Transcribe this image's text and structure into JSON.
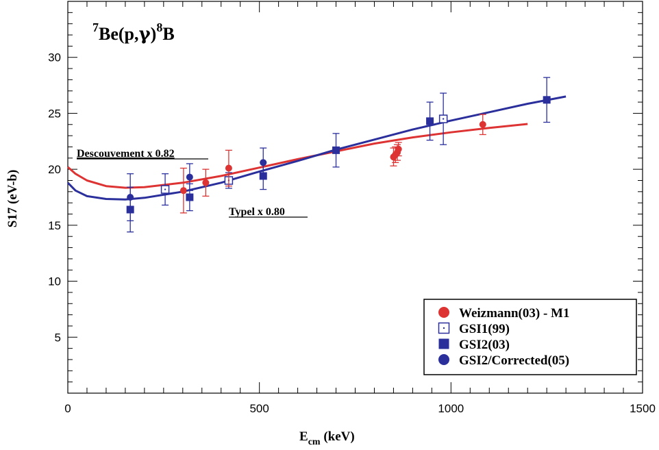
{
  "chart_data": {
    "type": "scatter",
    "title_parts": {
      "sup1": "7",
      "main1": "Be(p,",
      "gamma": "γ",
      "main2": ")",
      "sup2": "8",
      "main3": "B"
    },
    "xlabel": {
      "main": "E",
      "sub": "cm",
      "unit": " (keV)"
    },
    "ylabel": "S17 (eV-b)",
    "xlim": [
      0,
      1500
    ],
    "ylim": [
      0,
      35
    ],
    "xticks": [
      0,
      500,
      1000,
      1500
    ],
    "yticks": [
      5,
      10,
      15,
      20,
      25,
      30
    ],
    "colors": {
      "red": "#dd3333",
      "blue": "#2a2f9c"
    },
    "annotations": {
      "descouvemont": "Descouvement x 0.82",
      "typel": "Typel x 0.80"
    },
    "curves": [
      {
        "name": "Descouvement x 0.82",
        "color": "#dd3333",
        "x": [
          0,
          20,
          50,
          100,
          150,
          200,
          300,
          400,
          500,
          600,
          700,
          800,
          900,
          1000,
          1100,
          1200
        ],
        "y": [
          20.2,
          19.6,
          19.0,
          18.5,
          18.35,
          18.4,
          18.8,
          19.4,
          20.15,
          20.9,
          21.6,
          22.3,
          22.85,
          23.3,
          23.7,
          24.05
        ]
      },
      {
        "name": "Typel x 0.80",
        "color": "#2a2f9c",
        "x": [
          0,
          20,
          50,
          100,
          150,
          200,
          300,
          400,
          500,
          600,
          700,
          800,
          900,
          1000,
          1100,
          1200,
          1300
        ],
        "y": [
          18.8,
          18.1,
          17.6,
          17.35,
          17.3,
          17.45,
          18.0,
          18.8,
          19.8,
          20.75,
          21.75,
          22.65,
          23.55,
          24.35,
          25.1,
          25.85,
          26.5
        ]
      }
    ],
    "series": [
      {
        "name": "Weizmann(03) - M1",
        "marker": "circle",
        "color": "#dd3333",
        "points": [
          {
            "x": 302,
            "y": 18.1,
            "err": 2.0
          },
          {
            "x": 360,
            "y": 18.8,
            "err": 1.2
          },
          {
            "x": 420,
            "y": 20.1,
            "err": 1.6
          },
          {
            "x": 850,
            "y": 21.1,
            "err": 0.8
          },
          {
            "x": 855,
            "y": 21.3,
            "err": 0.7
          },
          {
            "x": 860,
            "y": 21.5,
            "err": 0.7
          },
          {
            "x": 863,
            "y": 21.8,
            "err": 0.6
          },
          {
            "x": 1083,
            "y": 24.0,
            "err": 0.9
          }
        ]
      },
      {
        "name": "GSI1(99)",
        "marker": "open-square",
        "color": "#2a2f9c",
        "points": [
          {
            "x": 254,
            "y": 18.2,
            "err": 1.4
          },
          {
            "x": 420,
            "y": 19.0,
            "err": 0.7
          },
          {
            "x": 980,
            "y": 24.5,
            "err": 2.3
          }
        ]
      },
      {
        "name": "GSI2(03)",
        "marker": "square",
        "color": "#2a2f9c",
        "points": [
          {
            "x": 163,
            "y": 16.4,
            "err": 2.0
          },
          {
            "x": 318,
            "y": 17.5,
            "err": 1.2
          },
          {
            "x": 510,
            "y": 19.4,
            "err": 1.2
          },
          {
            "x": 700,
            "y": 21.7,
            "err": 1.5
          },
          {
            "x": 945,
            "y": 24.3,
            "err": 1.7
          },
          {
            "x": 1250,
            "y": 26.2,
            "err": 2.0
          }
        ]
      },
      {
        "name": "GSI2/Corrected(05)",
        "marker": "circle",
        "color": "#2a2f9c",
        "points": [
          {
            "x": 163,
            "y": 17.5,
            "err": 2.1
          },
          {
            "x": 318,
            "y": 19.3,
            "err": 1.2
          },
          {
            "x": 510,
            "y": 20.6,
            "err": 1.3
          }
        ]
      }
    ],
    "legend": {
      "placement": "bottom-right",
      "entries": [
        {
          "label": "Weizmann(03) - M1",
          "marker": "circle",
          "color": "#dd3333"
        },
        {
          "label": "GSI1(99)",
          "marker": "open-square",
          "color": "#2a2f9c"
        },
        {
          "label": "GSI2(03)",
          "marker": "square",
          "color": "#2a2f9c"
        },
        {
          "label": " GSI2/Corrected(05)",
          "marker": "circle",
          "color": "#2a2f9c"
        }
      ]
    }
  }
}
